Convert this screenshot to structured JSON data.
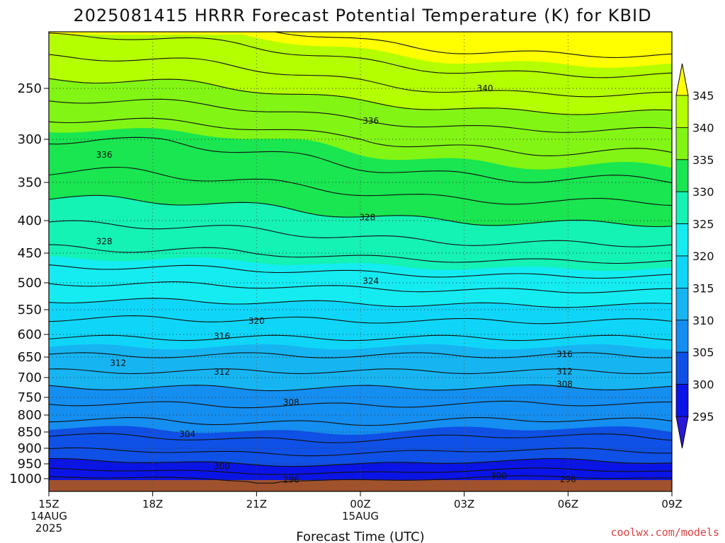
{
  "chart_data": {
    "type": "heatmap",
    "title": "2025081415 HRRR Forecast Potential Temperature (K) for KBID",
    "xlabel": "Forecast Time (UTC)",
    "ylabel": "",
    "y_pressure_hpa": [
      1000,
      950,
      900,
      850,
      800,
      750,
      700,
      650,
      600,
      550,
      500,
      450,
      400,
      350,
      300,
      250
    ],
    "x_forecast_hour": [
      0,
      3,
      6,
      9,
      12,
      15,
      18
    ],
    "x_tick_labels": [
      [
        "15Z",
        "14AUG",
        "2025"
      ],
      [
        "18Z"
      ],
      [
        "21Z"
      ],
      [
        "00Z",
        "15AUG"
      ],
      [
        "03Z"
      ],
      [
        "06Z"
      ],
      [
        "09Z"
      ]
    ],
    "colorbar": {
      "label_values": [
        "345",
        "340",
        "335",
        "330",
        "325",
        "320",
        "315",
        "310",
        "305",
        "300",
        "295"
      ],
      "bands": [
        {
          "from": 290,
          "to": 295,
          "color": "#2a18d8"
        },
        {
          "from": 295,
          "to": 300,
          "color": "#0a14e6"
        },
        {
          "from": 300,
          "to": 305,
          "color": "#0f50e6"
        },
        {
          "from": 305,
          "to": 310,
          "color": "#148ef0"
        },
        {
          "from": 310,
          "to": 315,
          "color": "#17b4f2"
        },
        {
          "from": 315,
          "to": 320,
          "color": "#0fd6f8"
        },
        {
          "from": 320,
          "to": 325,
          "color": "#14ecf2"
        },
        {
          "from": 325,
          "to": 330,
          "color": "#14f2b4"
        },
        {
          "from": 330,
          "to": 335,
          "color": "#19e650"
        },
        {
          "from": 335,
          "to": 340,
          "color": "#82f514"
        },
        {
          "from": 340,
          "to": 345,
          "color": "#b4ff00"
        },
        {
          "from": 345,
          "to": 350,
          "color": "#ffff00"
        }
      ],
      "below_color": "#2a18d8",
      "above_color": "#ffff00"
    },
    "contour_labels": [
      {
        "value": "340",
        "x_hour": 12.6,
        "p": 250
      },
      {
        "value": "336",
        "x_hour": 9.3,
        "p": 282
      },
      {
        "value": "336",
        "x_hour": 1.6,
        "p": 318
      },
      {
        "value": "328",
        "x_hour": 9.2,
        "p": 396
      },
      {
        "value": "328",
        "x_hour": 1.6,
        "p": 432
      },
      {
        "value": "324",
        "x_hour": 9.3,
        "p": 497
      },
      {
        "value": "320",
        "x_hour": 6.0,
        "p": 573
      },
      {
        "value": "316",
        "x_hour": 5.0,
        "p": 604
      },
      {
        "value": "316",
        "x_hour": 14.9,
        "p": 644
      },
      {
        "value": "312",
        "x_hour": 2.0,
        "p": 665
      },
      {
        "value": "312",
        "x_hour": 5.0,
        "p": 686
      },
      {
        "value": "312",
        "x_hour": 14.9,
        "p": 685
      },
      {
        "value": "308",
        "x_hour": 14.9,
        "p": 717
      },
      {
        "value": "308",
        "x_hour": 7.0,
        "p": 764
      },
      {
        "value": "304",
        "x_hour": 4.0,
        "p": 856
      },
      {
        "value": "300",
        "x_hour": 5.0,
        "p": 958
      },
      {
        "value": "296",
        "x_hour": 7.0,
        "p": 1003
      },
      {
        "value": "300",
        "x_hour": 13.0,
        "p": 990
      },
      {
        "value": "296",
        "x_hour": 15.0,
        "p": 1002
      }
    ],
    "grid": "dotted",
    "surface_color": "#a0522d"
  },
  "credit": "coolwx.com/models"
}
